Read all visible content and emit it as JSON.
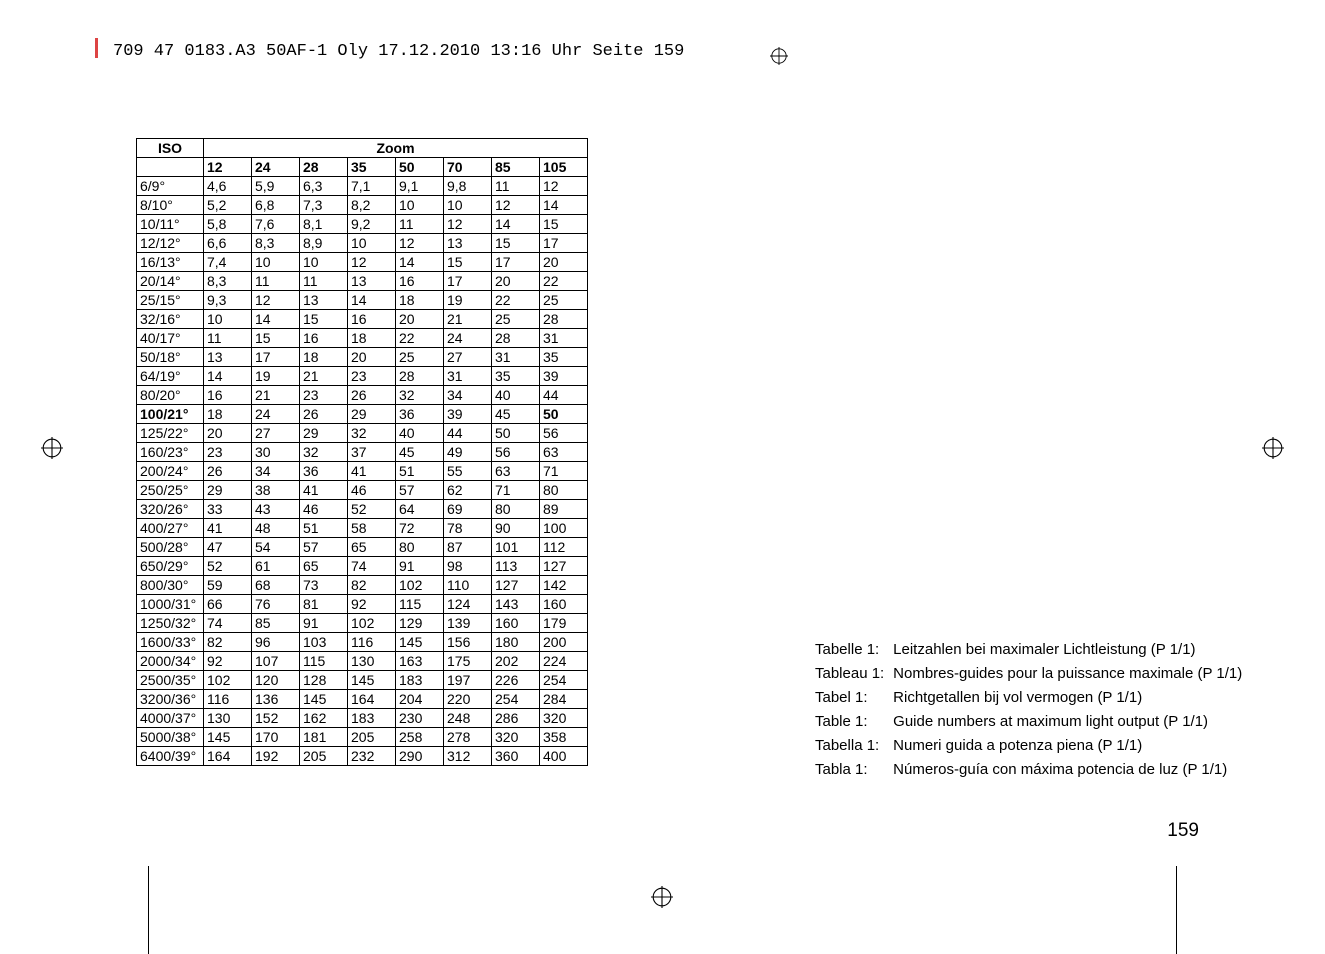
{
  "header": {
    "text": "709 47 0183.A3 50AF-1 Oly  17.12.2010  13:16 Uhr  Seite 159"
  },
  "table": {
    "colHeaders": {
      "iso": "ISO",
      "zoom": "Zoom",
      "zoomValues": [
        "12",
        "24",
        "28",
        "35",
        "50",
        "70",
        "85",
        "105"
      ]
    },
    "rows": [
      {
        "iso": "6/9°",
        "vals": [
          "4,6",
          "5,9",
          "6,3",
          "7,1",
          "9,1",
          "9,8",
          "11",
          "12"
        ]
      },
      {
        "iso": "8/10°",
        "vals": [
          "5,2",
          "6,8",
          "7,3",
          "8,2",
          "10",
          "10",
          "12",
          "14"
        ]
      },
      {
        "iso": "10/11°",
        "vals": [
          "5,8",
          "7,6",
          "8,1",
          "9,2",
          "11",
          "12",
          "14",
          "15"
        ]
      },
      {
        "iso": "12/12°",
        "vals": [
          "6,6",
          "8,3",
          "8,9",
          "10",
          "12",
          "13",
          "15",
          "17"
        ]
      },
      {
        "iso": "16/13°",
        "vals": [
          "7,4",
          "10",
          "10",
          "12",
          "14",
          "15",
          "17",
          "20"
        ]
      },
      {
        "iso": "20/14°",
        "vals": [
          "8,3",
          "11",
          "11",
          "13",
          "16",
          "17",
          "20",
          "22"
        ]
      },
      {
        "iso": "25/15°",
        "vals": [
          "9,3",
          "12",
          "13",
          "14",
          "18",
          "19",
          "22",
          "25"
        ]
      },
      {
        "iso": "32/16°",
        "vals": [
          "10",
          "14",
          "15",
          "16",
          "20",
          "21",
          "25",
          "28"
        ]
      },
      {
        "iso": "40/17°",
        "vals": [
          "11",
          "15",
          "16",
          "18",
          "22",
          "24",
          "28",
          "31"
        ]
      },
      {
        "iso": "50/18°",
        "vals": [
          "13",
          "17",
          "18",
          "20",
          "25",
          "27",
          "31",
          "35"
        ]
      },
      {
        "iso": "64/19°",
        "vals": [
          "14",
          "19",
          "21",
          "23",
          "28",
          "31",
          "35",
          "39"
        ]
      },
      {
        "iso": "80/20°",
        "vals": [
          "16",
          "21",
          "23",
          "26",
          "32",
          "34",
          "40",
          "44"
        ]
      },
      {
        "iso": "100/21°",
        "vals": [
          "18",
          "24",
          "26",
          "29",
          "36",
          "39",
          "45",
          "50"
        ],
        "boldIso": true,
        "boldLast": true
      },
      {
        "iso": "125/22°",
        "vals": [
          "20",
          "27",
          "29",
          "32",
          "40",
          "44",
          "50",
          "56"
        ]
      },
      {
        "iso": "160/23°",
        "vals": [
          "23",
          "30",
          "32",
          "37",
          "45",
          "49",
          "56",
          "63"
        ]
      },
      {
        "iso": "200/24°",
        "vals": [
          "26",
          "34",
          "36",
          "41",
          "51",
          "55",
          "63",
          "71"
        ]
      },
      {
        "iso": "250/25°",
        "vals": [
          "29",
          "38",
          "41",
          "46",
          "57",
          "62",
          "71",
          "80"
        ]
      },
      {
        "iso": "320/26°",
        "vals": [
          "33",
          "43",
          "46",
          "52",
          "64",
          "69",
          "80",
          "89"
        ]
      },
      {
        "iso": "400/27°",
        "vals": [
          "41",
          "48",
          "51",
          "58",
          "72",
          "78",
          "90",
          "100"
        ]
      },
      {
        "iso": "500/28°",
        "vals": [
          "47",
          "54",
          "57",
          "65",
          "80",
          "87",
          "101",
          "112"
        ]
      },
      {
        "iso": "650/29°",
        "vals": [
          "52",
          "61",
          "65",
          "74",
          "91",
          "98",
          "113",
          "127"
        ]
      },
      {
        "iso": "800/30°",
        "vals": [
          "59",
          "68",
          "73",
          "82",
          "102",
          "110",
          "127",
          "142"
        ]
      },
      {
        "iso": "1000/31°",
        "vals": [
          "66",
          "76",
          "81",
          "92",
          "115",
          "124",
          "143",
          "160"
        ]
      },
      {
        "iso": "1250/32°",
        "vals": [
          "74",
          "85",
          "91",
          "102",
          "129",
          "139",
          "160",
          "179"
        ]
      },
      {
        "iso": "1600/33°",
        "vals": [
          "82",
          "96",
          "103",
          "116",
          "145",
          "156",
          "180",
          "200"
        ]
      },
      {
        "iso": "2000/34°",
        "vals": [
          "92",
          "107",
          "115",
          "130",
          "163",
          "175",
          "202",
          "224"
        ]
      },
      {
        "iso": "2500/35°",
        "vals": [
          "102",
          "120",
          "128",
          "145",
          "183",
          "197",
          "226",
          "254"
        ]
      },
      {
        "iso": "3200/36°",
        "vals": [
          "116",
          "136",
          "145",
          "164",
          "204",
          "220",
          "254",
          "284"
        ]
      },
      {
        "iso": "4000/37°",
        "vals": [
          "130",
          "152",
          "162",
          "183",
          "230",
          "248",
          "286",
          "320"
        ]
      },
      {
        "iso": "5000/38°",
        "vals": [
          "145",
          "170",
          "181",
          "205",
          "258",
          "278",
          "320",
          "358"
        ]
      },
      {
        "iso": "6400/39°",
        "vals": [
          "164",
          "192",
          "205",
          "232",
          "290",
          "312",
          "360",
          "400"
        ]
      }
    ]
  },
  "captions": [
    {
      "label": "Tabelle 1:",
      "text": "Leitzahlen bei maximaler Lichtleistung (P 1/1)"
    },
    {
      "label": "Tableau 1:",
      "text": "Nombres-guides pour la puissance maximale (P 1/1)"
    },
    {
      "label": "Tabel 1:",
      "text": "Richtgetallen bij vol vermogen (P 1/1)"
    },
    {
      "label": "Table 1:",
      "text": "Guide numbers at maximum light output (P 1/1)"
    },
    {
      "label": "Tabella 1:",
      "text": "Numeri guida a potenza piena (P 1/1)"
    },
    {
      "label": "Tabla 1:",
      "text": "Números-guía con máxima potencia de luz (P 1/1)"
    }
  ],
  "pageNumber": "159"
}
